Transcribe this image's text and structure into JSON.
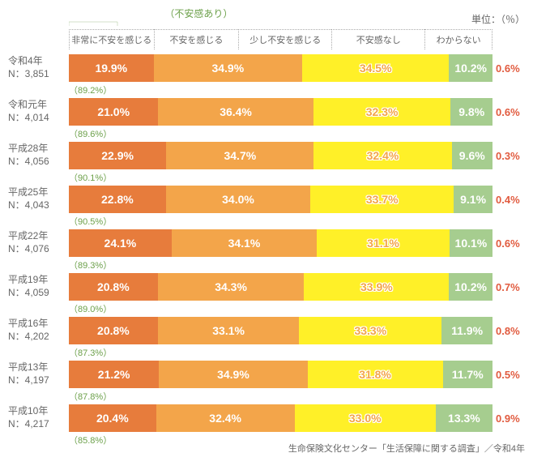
{
  "type": "stacked-horizontal-bar",
  "unit_label": "単位：（％）",
  "bracket_label": "（不安感あり）",
  "legend": [
    "非常に不安を感じる",
    "不安を感じる",
    "少し不安を感じる",
    "不安感なし",
    "わからない"
  ],
  "colors": {
    "seg": [
      "#e77c3c",
      "#f3a54a",
      "#fff028",
      "#a6cd8f",
      "#e15b3f"
    ],
    "seg_text": [
      "#ffffff",
      "#ffffff",
      "#f3a54a",
      "#ffffff",
      "#e15b3f"
    ],
    "seg_text_outline": [
      false,
      false,
      true,
      false,
      false
    ],
    "anxiety_text": "#6ca04a",
    "tail_text": "#e15b3f",
    "grid": "#aaaaaa",
    "label_text": "#666666",
    "background": "#ffffff"
  },
  "legend_widths_pct": [
    20,
    20,
    22,
    22,
    16
  ],
  "fontsize": {
    "seg": 14,
    "label": 12,
    "legend": 11,
    "tail": 13,
    "anxiety": 11,
    "source": 11
  },
  "rows": [
    {
      "year": "令和4年",
      "n": "N：3,851",
      "values": [
        19.9,
        34.9,
        34.5,
        10.2,
        0.6
      ],
      "anxiety": "（89.2%）"
    },
    {
      "year": "令和元年",
      "n": "N：4,014",
      "values": [
        21.0,
        36.4,
        32.3,
        9.8,
        0.6
      ],
      "anxiety": "（89.6%）"
    },
    {
      "year": "平成28年",
      "n": "N：4,056",
      "values": [
        22.9,
        34.7,
        32.4,
        9.6,
        0.3
      ],
      "anxiety": "（90.1%）"
    },
    {
      "year": "平成25年",
      "n": "N：4,043",
      "values": [
        22.8,
        34.0,
        33.7,
        9.1,
        0.4
      ],
      "anxiety": "（90.5%）"
    },
    {
      "year": "平成22年",
      "n": "N：4,076",
      "values": [
        24.1,
        34.1,
        31.1,
        10.1,
        0.6
      ],
      "anxiety": "（89.3%）"
    },
    {
      "year": "平成19年",
      "n": "N：4,059",
      "values": [
        20.8,
        34.3,
        33.9,
        10.2,
        0.7
      ],
      "anxiety": "（89.0%）"
    },
    {
      "year": "平成16年",
      "n": "N：4,202",
      "values": [
        20.8,
        33.1,
        33.3,
        11.9,
        0.8
      ],
      "anxiety": "（87.3%）"
    },
    {
      "year": "平成13年",
      "n": "N：4,197",
      "values": [
        21.2,
        34.9,
        31.8,
        11.7,
        0.5
      ],
      "anxiety": "（87.8%）"
    },
    {
      "year": "平成10年",
      "n": "N：4,217",
      "values": [
        20.4,
        32.4,
        33.0,
        13.3,
        0.9
      ],
      "anxiety": "（85.8%）"
    }
  ],
  "source": "生命保険文化センター「生活保障に関する調査」／令和4年"
}
